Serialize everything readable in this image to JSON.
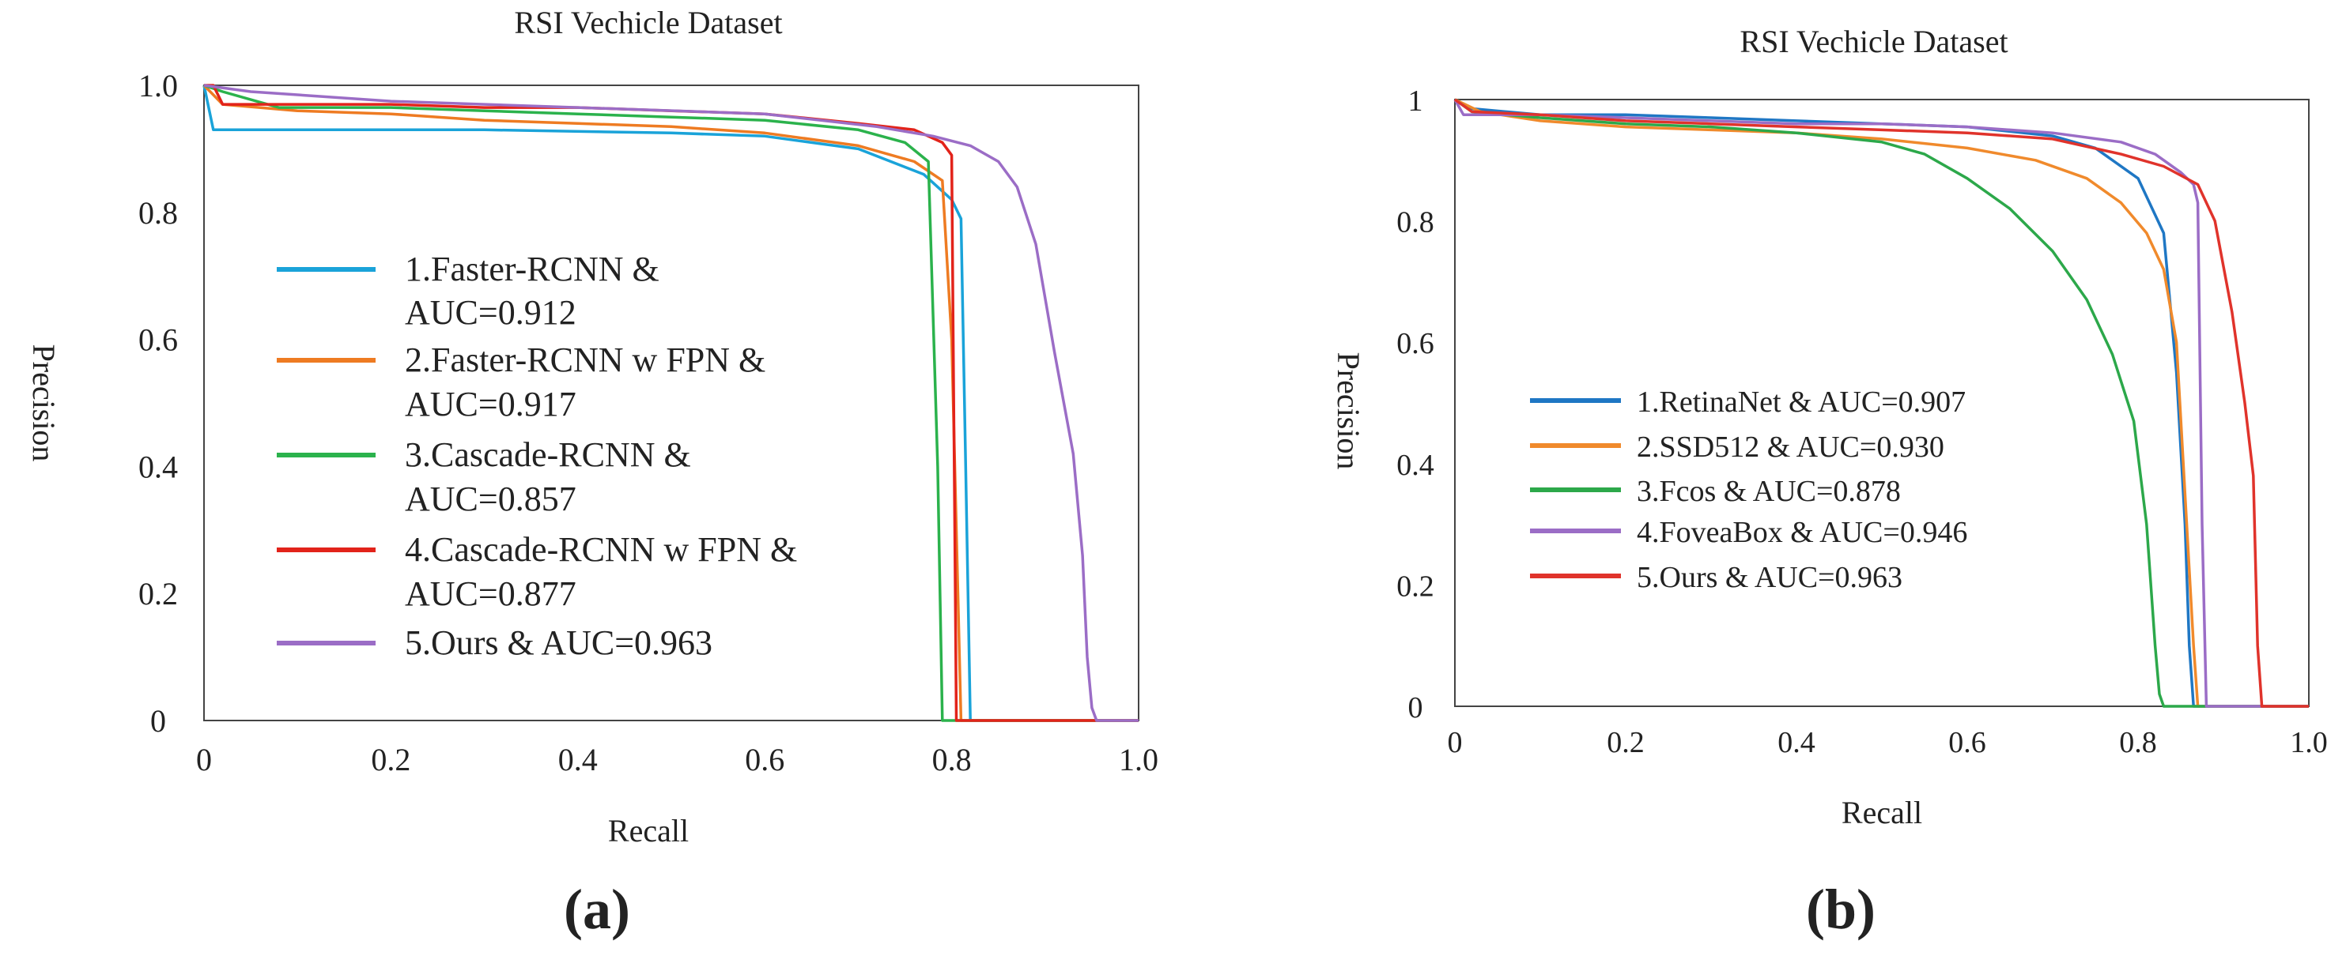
{
  "colors": {
    "a_series": [
      "#1aa3d9",
      "#ee7b22",
      "#2bb24c",
      "#e2231a",
      "#9b6dc6"
    ],
    "b_series": [
      "#1f77c4",
      "#f08a2c",
      "#2ca84a",
      "#9b6dc6",
      "#e0332b"
    ],
    "axis": "#444444",
    "text": "#222222"
  },
  "chart_data": [
    {
      "panel_label": "(a)",
      "type": "line",
      "title": "RSI Vechicle Dataset",
      "xlabel": "Recall",
      "ylabel": "Precision",
      "xlim": [
        0,
        1.0
      ],
      "ylim": [
        0,
        1.0
      ],
      "x_ticks": [
        "0",
        "0.2",
        "0.4",
        "0.6",
        "0.8",
        "1.0"
      ],
      "y_ticks": [
        "0",
        "0.2",
        "0.4",
        "0.6",
        "0.8",
        "1.0"
      ],
      "grid": false,
      "legend_position": "left-center",
      "series": [
        {
          "name": "1.Faster-RCNN &",
          "name2": "AUC=0.912",
          "x": [
            0,
            0.01,
            0.1,
            0.3,
            0.5,
            0.6,
            0.7,
            0.77,
            0.8,
            0.81,
            0.815,
            0.82,
            1.0
          ],
          "y": [
            1.0,
            0.93,
            0.93,
            0.93,
            0.925,
            0.92,
            0.9,
            0.86,
            0.82,
            0.79,
            0.4,
            0,
            0
          ]
        },
        {
          "name": "2.Faster-RCNN w FPN &",
          "name2": "AUC=0.917",
          "x": [
            0,
            0.02,
            0.1,
            0.2,
            0.3,
            0.4,
            0.5,
            0.6,
            0.7,
            0.76,
            0.79,
            0.8,
            0.81,
            1.0
          ],
          "y": [
            1.0,
            0.97,
            0.96,
            0.955,
            0.945,
            0.94,
            0.935,
            0.925,
            0.905,
            0.88,
            0.85,
            0.6,
            0,
            0
          ]
        },
        {
          "name": "3.Cascade-RCNN &",
          "name2": "AUC=0.857",
          "x": [
            0,
            0.02,
            0.08,
            0.2,
            0.3,
            0.4,
            0.5,
            0.6,
            0.7,
            0.75,
            0.775,
            0.785,
            0.79,
            1.0
          ],
          "y": [
            1.0,
            0.99,
            0.965,
            0.965,
            0.96,
            0.955,
            0.95,
            0.945,
            0.93,
            0.91,
            0.88,
            0.4,
            0,
            0
          ]
        },
        {
          "name": "4.Cascade-RCNN w FPN &",
          "name2": "AUC=0.877",
          "x": [
            0,
            0.01,
            0.02,
            0.2,
            0.3,
            0.4,
            0.5,
            0.6,
            0.7,
            0.76,
            0.79,
            0.8,
            0.805,
            1.0
          ],
          "y": [
            1.0,
            1.0,
            0.97,
            0.97,
            0.965,
            0.965,
            0.96,
            0.955,
            0.94,
            0.93,
            0.91,
            0.89,
            0,
            0
          ]
        },
        {
          "name": "5.Ours & AUC=0.963",
          "name2": "",
          "x": [
            0,
            0.05,
            0.2,
            0.4,
            0.6,
            0.72,
            0.78,
            0.82,
            0.85,
            0.87,
            0.89,
            0.91,
            0.93,
            0.94,
            0.945,
            0.95,
            0.955,
            1.0
          ],
          "y": [
            1.0,
            0.99,
            0.975,
            0.965,
            0.955,
            0.935,
            0.92,
            0.905,
            0.88,
            0.84,
            0.75,
            0.58,
            0.42,
            0.26,
            0.1,
            0.02,
            0,
            0
          ]
        }
      ]
    },
    {
      "panel_label": "(b)",
      "type": "line",
      "title": "RSI Vechicle Dataset",
      "xlabel": "Recall",
      "ylabel": "Precision",
      "xlim": [
        0,
        1.0
      ],
      "ylim": [
        0,
        1.0
      ],
      "x_ticks": [
        "0",
        "0.2",
        "0.4",
        "0.6",
        "0.8",
        "1.0"
      ],
      "y_ticks": [
        "0",
        "0.2",
        "0.4",
        "0.6",
        "0.8",
        "1"
      ],
      "grid": false,
      "legend_position": "center-left",
      "series": [
        {
          "name": "1.RetinaNet & AUC=0.907",
          "x": [
            0,
            0.02,
            0.1,
            0.2,
            0.3,
            0.4,
            0.5,
            0.6,
            0.7,
            0.75,
            0.8,
            0.83,
            0.845,
            0.855,
            0.86,
            0.865,
            1.0
          ],
          "y": [
            1.0,
            0.985,
            0.975,
            0.975,
            0.97,
            0.965,
            0.96,
            0.955,
            0.94,
            0.92,
            0.87,
            0.78,
            0.55,
            0.3,
            0.1,
            0,
            0
          ]
        },
        {
          "name": "2.SSD512 & AUC=0.930",
          "x": [
            0,
            0.03,
            0.1,
            0.2,
            0.3,
            0.4,
            0.5,
            0.6,
            0.68,
            0.74,
            0.78,
            0.81,
            0.83,
            0.845,
            0.855,
            0.865,
            0.87,
            1.0
          ],
          "y": [
            1.0,
            0.98,
            0.965,
            0.955,
            0.95,
            0.945,
            0.935,
            0.92,
            0.9,
            0.87,
            0.83,
            0.78,
            0.72,
            0.6,
            0.35,
            0.1,
            0,
            0
          ]
        },
        {
          "name": "3.Fcos & AUC=0.878",
          "x": [
            0,
            0.02,
            0.1,
            0.2,
            0.3,
            0.4,
            0.5,
            0.55,
            0.6,
            0.65,
            0.7,
            0.74,
            0.77,
            0.795,
            0.81,
            0.82,
            0.825,
            0.83,
            1.0
          ],
          "y": [
            1.0,
            0.98,
            0.97,
            0.96,
            0.955,
            0.945,
            0.93,
            0.91,
            0.87,
            0.82,
            0.75,
            0.67,
            0.58,
            0.47,
            0.3,
            0.1,
            0.02,
            0,
            0
          ]
        },
        {
          "name": "4.FoveaBox & AUC=0.946",
          "x": [
            0,
            0.01,
            0.1,
            0.2,
            0.3,
            0.4,
            0.5,
            0.6,
            0.7,
            0.78,
            0.82,
            0.85,
            0.865,
            0.87,
            0.875,
            0.88,
            1.0
          ],
          "y": [
            1.0,
            0.975,
            0.975,
            0.97,
            0.965,
            0.96,
            0.96,
            0.955,
            0.945,
            0.93,
            0.91,
            0.88,
            0.86,
            0.83,
            0.3,
            0,
            0
          ]
        },
        {
          "name": "5.Ours & AUC=0.963",
          "x": [
            0,
            0.02,
            0.1,
            0.2,
            0.3,
            0.4,
            0.5,
            0.6,
            0.7,
            0.78,
            0.83,
            0.87,
            0.89,
            0.91,
            0.925,
            0.935,
            0.94,
            0.945,
            1.0
          ],
          "y": [
            1.0,
            0.98,
            0.975,
            0.965,
            0.96,
            0.955,
            0.95,
            0.945,
            0.935,
            0.91,
            0.89,
            0.86,
            0.8,
            0.65,
            0.5,
            0.38,
            0.1,
            0,
            0
          ]
        }
      ]
    }
  ]
}
